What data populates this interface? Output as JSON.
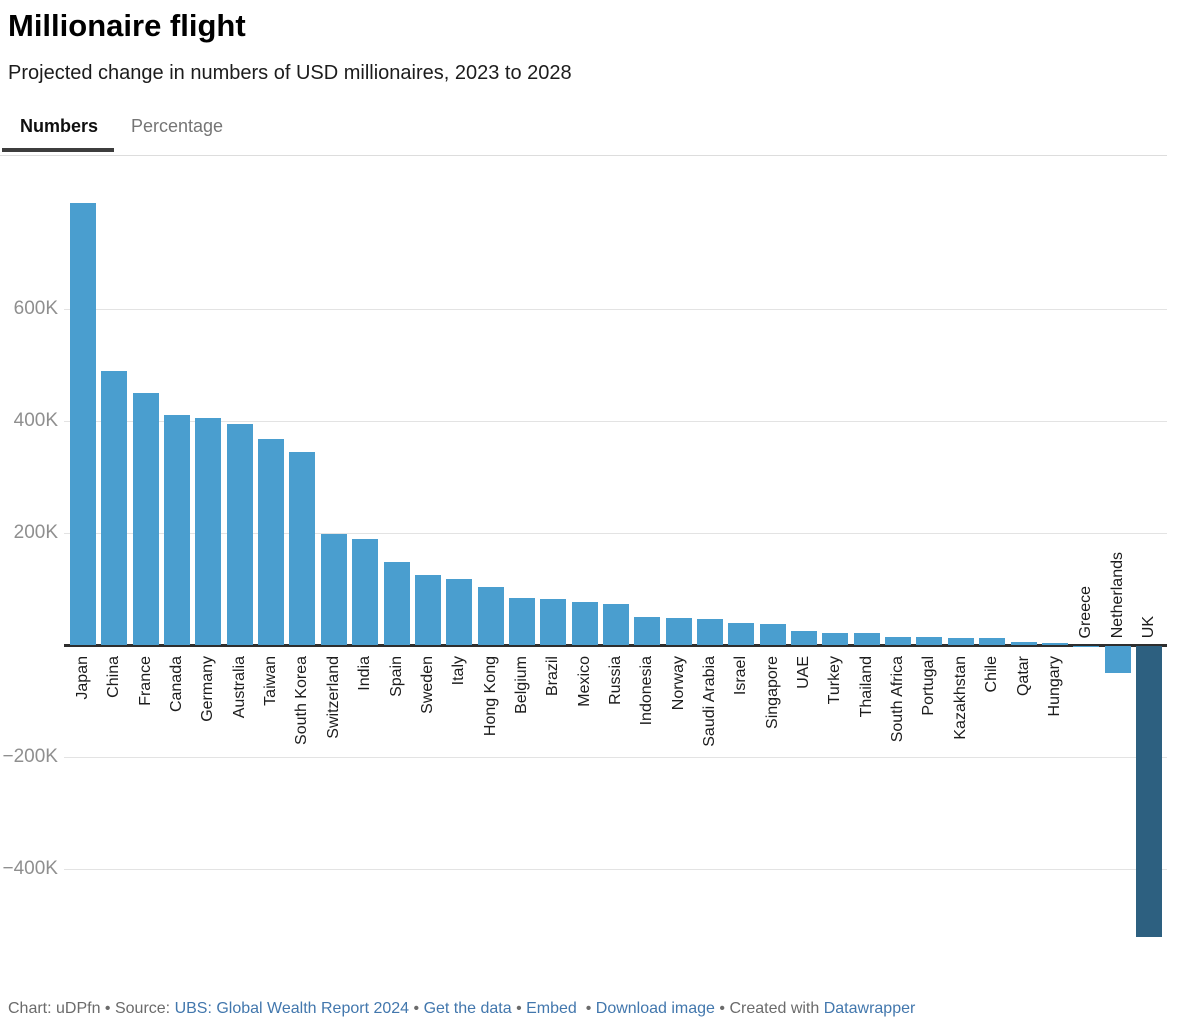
{
  "header": {
    "title": "Millionaire flight",
    "subtitle": "Projected change in numbers of USD millionaires, 2023 to 2028"
  },
  "tabs": [
    {
      "label": "Numbers",
      "active": true
    },
    {
      "label": "Percentage",
      "active": false
    }
  ],
  "colors": {
    "bar_default": "#4a9ecf",
    "bar_uk": "#2d6080",
    "link": "#4277ad",
    "footer_text": "#6b6b6b",
    "active_tab_underline": "#3d3d3d"
  },
  "chart_data": {
    "type": "bar",
    "title": "Millionaire flight",
    "subtitle": "Projected change in numbers of USD millionaires, 2023 to 2028",
    "unit": "USD millionaires (thousands)",
    "xlabel": "",
    "ylabel": "",
    "grid": true,
    "legend": "none",
    "ylim_k": [
      -560,
      800
    ],
    "categories": [
      "Japan",
      "China",
      "France",
      "Canada",
      "Germany",
      "Australia",
      "Taiwan",
      "South Korea",
      "Switzerland",
      "India",
      "Spain",
      "Sweden",
      "Italy",
      "Hong Kong",
      "Belgium",
      "Brazil",
      "Mexico",
      "Russia",
      "Indonesia",
      "Norway",
      "Saudi Arabia",
      "Israel",
      "Singapore",
      "UAE",
      "Turkey",
      "Thailand",
      "South Africa",
      "Portugal",
      "Kazakhstan",
      "Chile",
      "Qatar",
      "Hungary",
      "Greece",
      "Netherlands",
      "UK"
    ],
    "values_k": [
      790,
      490,
      450,
      410,
      405,
      395,
      368,
      345,
      198,
      190,
      148,
      125,
      118,
      103,
      84,
      82,
      76,
      74,
      50,
      48,
      46,
      40,
      38,
      25,
      22,
      21,
      15,
      14,
      13,
      12,
      5,
      4,
      -2,
      -48,
      -520
    ],
    "highlighted_category": "UK",
    "y_ticks": [
      {
        "label": "600K",
        "value": 600
      },
      {
        "label": "400K",
        "value": 400
      },
      {
        "label": "200K",
        "value": 200
      },
      {
        "label": "−200K",
        "value": -200
      },
      {
        "label": "−400K",
        "value": -400
      }
    ]
  },
  "footer": {
    "parts": [
      {
        "type": "text",
        "text": "Chart: uDPfn • Source: "
      },
      {
        "type": "link",
        "text": "UBS: Global Wealth Report 2024"
      },
      {
        "type": "text",
        "text": " • "
      },
      {
        "type": "link",
        "text": "Get the data"
      },
      {
        "type": "text",
        "text": " • "
      },
      {
        "type": "link",
        "text": "Embed"
      },
      {
        "type": "text",
        "text": "  • "
      },
      {
        "type": "link",
        "text": "Download image"
      },
      {
        "type": "text",
        "text": " • Created with "
      },
      {
        "type": "link",
        "text": "Datawrapper"
      }
    ]
  }
}
